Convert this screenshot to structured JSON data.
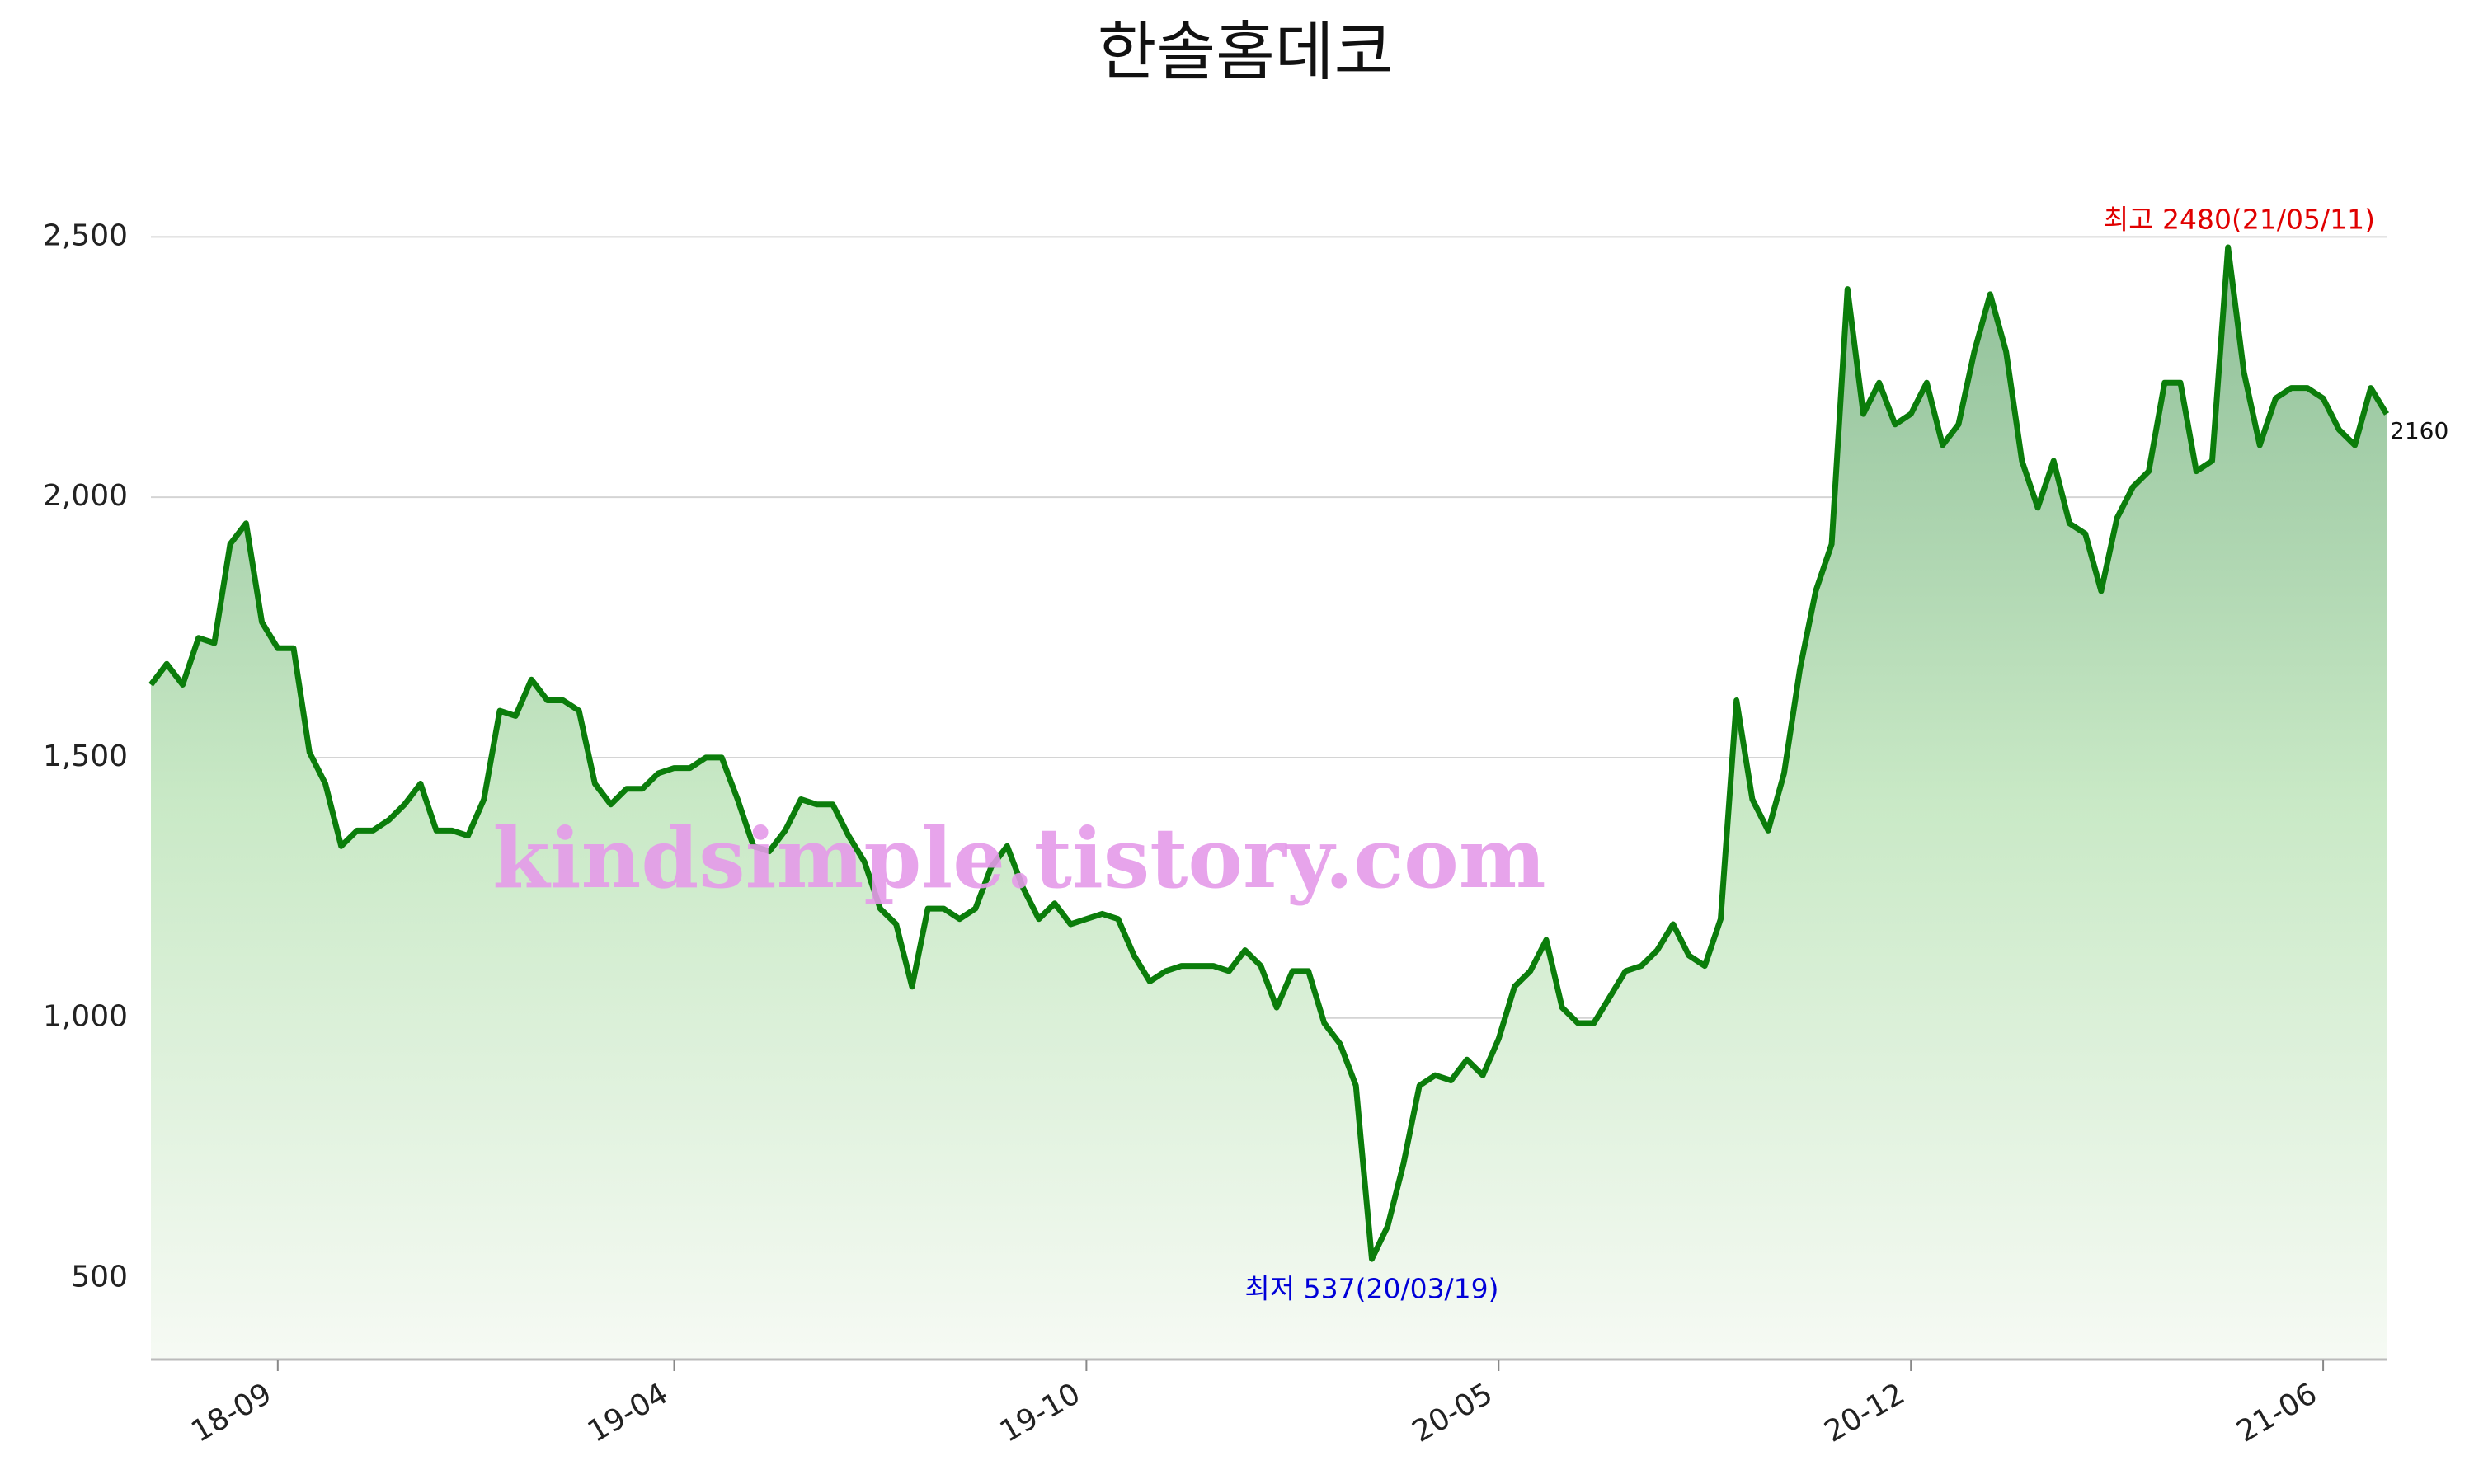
{
  "chart_data": {
    "type": "line",
    "title": "한솔홈데코",
    "watermark": "kindsimple.tistory.com",
    "categories": [
      null,
      null,
      null,
      null,
      null,
      null,
      null,
      null,
      "18-09",
      null,
      null,
      null,
      null,
      null,
      null,
      null,
      null,
      null,
      null,
      null,
      null,
      null,
      null,
      null,
      null,
      null,
      null,
      null,
      null,
      null,
      null,
      null,
      null,
      "19-04",
      null,
      null,
      null,
      null,
      null,
      null,
      null,
      null,
      null,
      null,
      null,
      null,
      null,
      null,
      null,
      null,
      null,
      null,
      null,
      null,
      null,
      null,
      null,
      null,
      null,
      "19-10",
      null,
      null,
      null,
      null,
      null,
      null,
      null,
      null,
      null,
      null,
      null,
      null,
      null,
      null,
      null,
      null,
      null,
      null,
      null,
      null,
      null,
      null,
      null,
      null,
      null,
      "20-05",
      null,
      null,
      null,
      null,
      null,
      null,
      null,
      null,
      null,
      null,
      null,
      null,
      null,
      null,
      null,
      null,
      null,
      null,
      null,
      null,
      null,
      null,
      null,
      null,
      null,
      "20-12",
      null,
      null,
      null,
      null,
      null,
      null,
      null,
      null,
      null,
      null,
      null,
      null,
      null,
      null,
      null,
      null,
      null,
      null,
      null,
      null,
      null,
      null,
      null,
      null,
      null,
      "21-06",
      null,
      null,
      null,
      null
    ],
    "values": [
      1640,
      1680,
      1640,
      1730,
      1720,
      1910,
      1950,
      1760,
      1710,
      1710,
      1510,
      1450,
      1330,
      1360,
      1360,
      1380,
      1410,
      1450,
      1360,
      1360,
      1350,
      1420,
      1590,
      1580,
      1650,
      1610,
      1610,
      1590,
      1450,
      1410,
      1440,
      1440,
      1470,
      1480,
      1480,
      1500,
      1500,
      1420,
      1330,
      1320,
      1360,
      1420,
      1410,
      1410,
      1350,
      1300,
      1210,
      1180,
      1060,
      1210,
      1210,
      1190,
      1210,
      1290,
      1330,
      1250,
      1190,
      1220,
      1180,
      1190,
      1200,
      1190,
      1120,
      1070,
      1090,
      1100,
      1100,
      1100,
      1090,
      1130,
      1100,
      1020,
      1090,
      1090,
      990,
      950,
      870,
      537,
      600,
      720,
      870,
      890,
      880,
      920,
      890,
      960,
      1060,
      1090,
      1150,
      1020,
      990,
      990,
      1040,
      1090,
      1100,
      1130,
      1180,
      1120,
      1100,
      1190,
      1610,
      1420,
      1360,
      1470,
      1670,
      1820,
      1910,
      2400,
      2160,
      2220,
      2140,
      2160,
      2220,
      2100,
      2140,
      2280,
      2390,
      2280,
      2070,
      1980,
      2070,
      1950,
      1930,
      1820,
      1960,
      2020,
      2050,
      2220,
      2220,
      2050,
      2070,
      2480,
      2240,
      2100,
      2190,
      2210,
      2210,
      2190,
      2130,
      2100,
      2210,
      2160
    ],
    "color": "#0b7d0b",
    "ylim": [
      344,
      2640
    ],
    "yticks": [
      500,
      {
        "value": 1000,
        "label": "1,000"
      },
      {
        "value": 1500,
        "label": "1,500"
      },
      {
        "value": 2000,
        "label": "2,000"
      },
      {
        "value": 2500,
        "label": "2,500"
      }
    ],
    "grid": true,
    "annotations": {
      "max": "최고 2480(21/05/11)",
      "min": "최저 537(20/03/19)",
      "last": "2160"
    }
  }
}
